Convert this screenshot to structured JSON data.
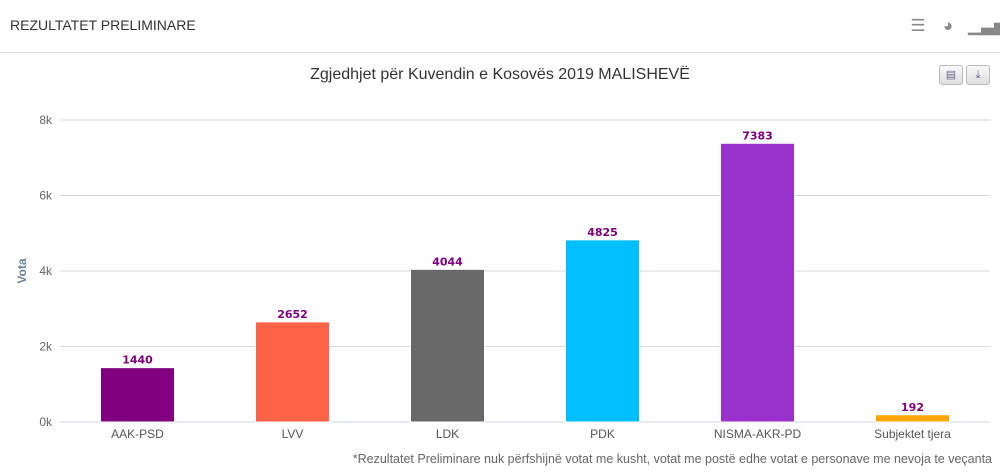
{
  "header": {
    "title": "REZULTATET PRELIMINARE",
    "icons": [
      "list-icon",
      "pie-chart-icon",
      "bar-chart-icon"
    ]
  },
  "buttons": {
    "print": "print-icon",
    "download": "download-icon"
  },
  "footnote": "*Rezultatet Preliminare nuk përfshijnë votat me kusht, votat me postë edhe votat e personave me nevoja te veçanta",
  "chart_data": {
    "type": "bar",
    "title": "Zgjedhjet për Kuvendin e Kosovës 2019 MALISHEVË",
    "xlabel": "",
    "ylabel": "Vota",
    "ylim": [
      0,
      8000
    ],
    "yticks": [
      0,
      2000,
      4000,
      6000,
      8000
    ],
    "ytick_labels": [
      "0k",
      "2k",
      "4k",
      "6k",
      "8k"
    ],
    "grid": true,
    "categories": [
      "AAK-PSD",
      "LVV",
      "LDK",
      "PDK",
      "NISMA-AKR-PD",
      "Subjektet tjera"
    ],
    "values": [
      1440,
      2652,
      4044,
      4825,
      7383,
      192
    ],
    "colors": [
      "#800080",
      "#FF6347",
      "#696969",
      "#00BFFF",
      "#9932CC",
      "#FFA500"
    ],
    "label_color": "#800080"
  }
}
